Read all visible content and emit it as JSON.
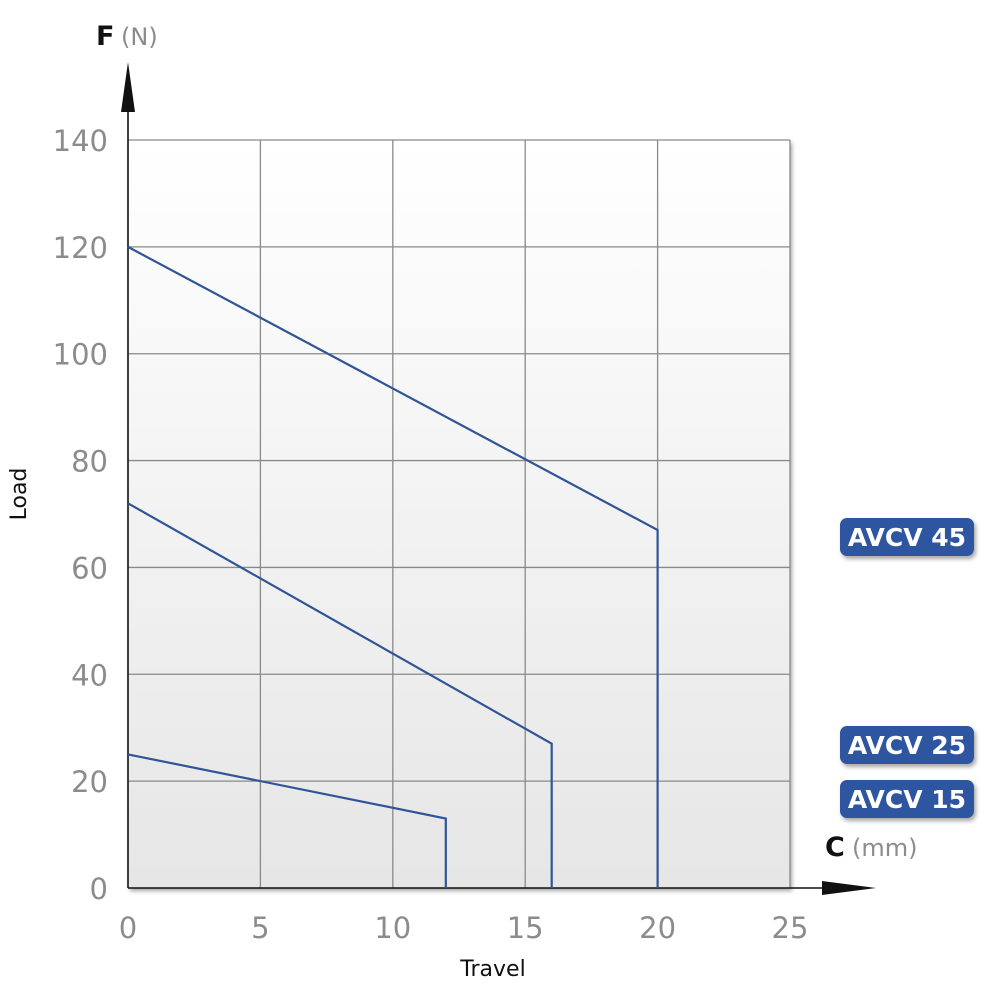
{
  "chart_data": {
    "type": "line",
    "y_axis": {
      "letter": "F",
      "unit": "(N)",
      "title": "Load",
      "range": [
        0,
        140
      ],
      "ticks": [
        0,
        20,
        40,
        60,
        80,
        100,
        120,
        140
      ]
    },
    "x_axis": {
      "letter": "C",
      "unit": "(mm)",
      "title": "Travel",
      "range": [
        0,
        25
      ],
      "ticks": [
        0,
        5,
        10,
        15,
        20,
        25
      ]
    },
    "grid": true,
    "series": [
      {
        "name": "AVCV 45",
        "points": [
          [
            0,
            120
          ],
          [
            20,
            67
          ],
          [
            20,
            0
          ]
        ]
      },
      {
        "name": "AVCV 25",
        "points": [
          [
            0,
            72
          ],
          [
            16,
            27
          ],
          [
            16,
            0
          ]
        ]
      },
      {
        "name": "AVCV 15",
        "points": [
          [
            0,
            25
          ],
          [
            12,
            13
          ],
          [
            12,
            0
          ]
        ]
      }
    ],
    "colors": {
      "line": "#2f5597",
      "badge": "#2e55a0",
      "grid": "#8a8a8a",
      "tick_text": "#8c8c8c"
    }
  }
}
